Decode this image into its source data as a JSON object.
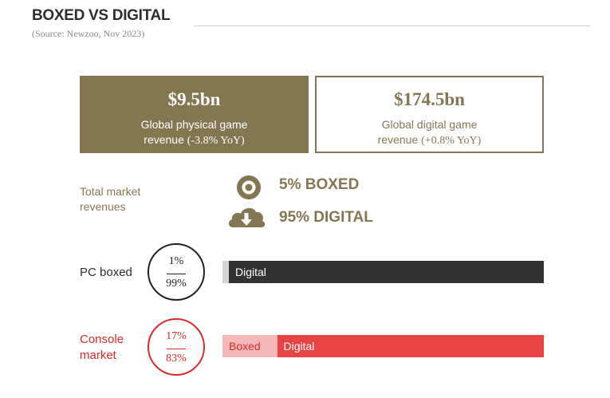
{
  "header": {
    "title": "BOXED VS DIGITAL",
    "source": "(Source: Newzoo, Nov 2023)"
  },
  "cards": {
    "physical": {
      "value": "$9.5bn",
      "line1": "Global physical game",
      "line2": "revenue",
      "yoy": "(-3.8% YoY)"
    },
    "digital": {
      "value": "$174.5bn",
      "line1": "Global digital game",
      "line2": "revenue",
      "yoy": "(+0.8% YoY)"
    }
  },
  "total_market": {
    "label_line1": "Total market",
    "label_line2": "revenues",
    "boxed_text": "5% BOXED",
    "digital_text": "95% DIGITAL"
  },
  "colors": {
    "accent": "#857652",
    "pc_digital": "#323232",
    "pc_boxed": "#d4d4d4",
    "console_digital": "#e84343",
    "console_boxed": "#f5b8b8",
    "console_text": "#d92b2b"
  },
  "chart_data": [
    {
      "type": "bar",
      "label": "PC boxed",
      "ring_top": "1%",
      "ring_bottom": "99%",
      "segments": [
        {
          "name": "",
          "value": 1
        },
        {
          "name": "Digital",
          "value": 99
        }
      ]
    },
    {
      "type": "bar",
      "label_line1": "Console",
      "label_line2": "market",
      "ring_top": "17%",
      "ring_bottom": "83%",
      "segments": [
        {
          "name": "Boxed",
          "value": 17
        },
        {
          "name": "Digital",
          "value": 83
        }
      ]
    }
  ]
}
